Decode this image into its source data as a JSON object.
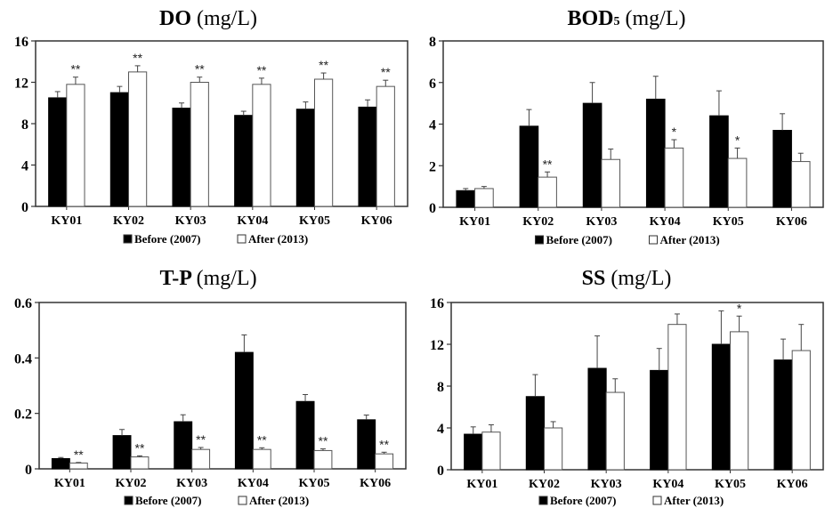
{
  "chart_data": [
    {
      "type": "bar",
      "title": "DO",
      "title_sub": "",
      "unit": "(mg/L)",
      "xlabel": "",
      "ylabel": "",
      "categories": [
        "KY01",
        "KY02",
        "KY03",
        "KY04",
        "KY05",
        "KY06"
      ],
      "ylim": [
        0,
        16
      ],
      "yticks": [
        0,
        4,
        8,
        12,
        16
      ],
      "ytick_labels": [
        "0",
        "4",
        "8",
        "12",
        "16"
      ],
      "grid": false,
      "legend_position": "bottom",
      "series": [
        {
          "name": "Before (2007)",
          "color": "#000000",
          "values": [
            10.5,
            11.0,
            9.5,
            8.8,
            9.4,
            9.6
          ],
          "error": [
            0.6,
            0.6,
            0.5,
            0.4,
            0.7,
            0.7
          ],
          "significance": [
            "",
            "",
            "",
            "",
            "",
            ""
          ]
        },
        {
          "name": "After (2013)",
          "color": "#ffffff",
          "values": [
            11.8,
            13.0,
            12.0,
            11.8,
            12.3,
            11.6
          ],
          "error": [
            0.7,
            0.6,
            0.5,
            0.6,
            0.6,
            0.6
          ],
          "significance": [
            "**",
            "**",
            "**",
            "**",
            "**",
            "**"
          ]
        }
      ]
    },
    {
      "type": "bar",
      "title": "BOD",
      "title_sub": "5",
      "unit": "(mg/L)",
      "xlabel": "",
      "ylabel": "",
      "categories": [
        "KY01",
        "KY02",
        "KY03",
        "KY04",
        "KY05",
        "KY06"
      ],
      "ylim": [
        0,
        8
      ],
      "yticks": [
        0,
        2,
        4,
        6,
        8
      ],
      "ytick_labels": [
        "0",
        "2",
        "4",
        "6",
        "8"
      ],
      "grid": false,
      "legend_position": "bottom",
      "series": [
        {
          "name": "Before (2007)",
          "color": "#000000",
          "values": [
            0.8,
            3.9,
            5.0,
            5.2,
            4.4,
            3.7
          ],
          "error": [
            0.1,
            0.8,
            1.0,
            1.1,
            1.2,
            0.8
          ],
          "significance": [
            "",
            "",
            "",
            "",
            "",
            ""
          ]
        },
        {
          "name": "After (2013)",
          "color": "#ffffff",
          "values": [
            0.9,
            1.45,
            2.3,
            2.85,
            2.35,
            2.2
          ],
          "error": [
            0.1,
            0.25,
            0.5,
            0.4,
            0.5,
            0.4
          ],
          "significance": [
            "",
            "**",
            "",
            "*",
            "*",
            ""
          ]
        }
      ]
    },
    {
      "type": "bar",
      "title": "T-P",
      "title_sub": "",
      "unit": "(mg/L)",
      "xlabel": "",
      "ylabel": "",
      "categories": [
        "KY01",
        "KY02",
        "KY03",
        "KY04",
        "KY05",
        "KY06"
      ],
      "ylim": [
        0,
        0.6
      ],
      "yticks": [
        0,
        0.2,
        0.4,
        0.6
      ],
      "ytick_labels": [
        "0",
        "0.2",
        "0.4",
        "0.6"
      ],
      "grid": false,
      "legend_position": "bottom",
      "series": [
        {
          "name": "Before (2007)",
          "color": "#000000",
          "values": [
            0.037,
            0.12,
            0.17,
            0.42,
            0.243,
            0.177
          ],
          "error": [
            0.004,
            0.022,
            0.025,
            0.063,
            0.025,
            0.017
          ],
          "significance": [
            "",
            "",
            "",
            "",
            "",
            ""
          ]
        },
        {
          "name": "After (2013)",
          "color": "#ffffff",
          "values": [
            0.021,
            0.043,
            0.07,
            0.07,
            0.066,
            0.054
          ],
          "error": [
            0.002,
            0.004,
            0.007,
            0.006,
            0.006,
            0.006
          ],
          "significance": [
            "**",
            "**",
            "**",
            "**",
            "**",
            "**"
          ]
        }
      ]
    },
    {
      "type": "bar",
      "title": "SS",
      "title_sub": "",
      "unit": "(mg/L)",
      "xlabel": "",
      "ylabel": "",
      "categories": [
        "KY01",
        "KY02",
        "KY03",
        "KY04",
        "KY05",
        "KY06"
      ],
      "ylim": [
        0,
        16
      ],
      "yticks": [
        0,
        4,
        8,
        12,
        16
      ],
      "ytick_labels": [
        "0",
        "4",
        "8",
        "12",
        "16"
      ],
      "grid": false,
      "legend_position": "bottom",
      "series": [
        {
          "name": "Before (2007)",
          "color": "#000000",
          "values": [
            3.4,
            7.0,
            9.7,
            9.5,
            12.0,
            10.5
          ],
          "error": [
            0.7,
            2.1,
            3.1,
            2.1,
            3.2,
            2.0
          ],
          "significance": [
            "",
            "",
            "",
            "",
            "",
            ""
          ]
        },
        {
          "name": "After (2013)",
          "color": "#ffffff",
          "values": [
            3.6,
            4.0,
            7.4,
            13.9,
            13.2,
            11.4
          ],
          "error": [
            0.7,
            0.6,
            1.3,
            1.0,
            1.5,
            2.5
          ],
          "significance": [
            "",
            "",
            "",
            "",
            "*",
            ""
          ]
        }
      ]
    }
  ]
}
